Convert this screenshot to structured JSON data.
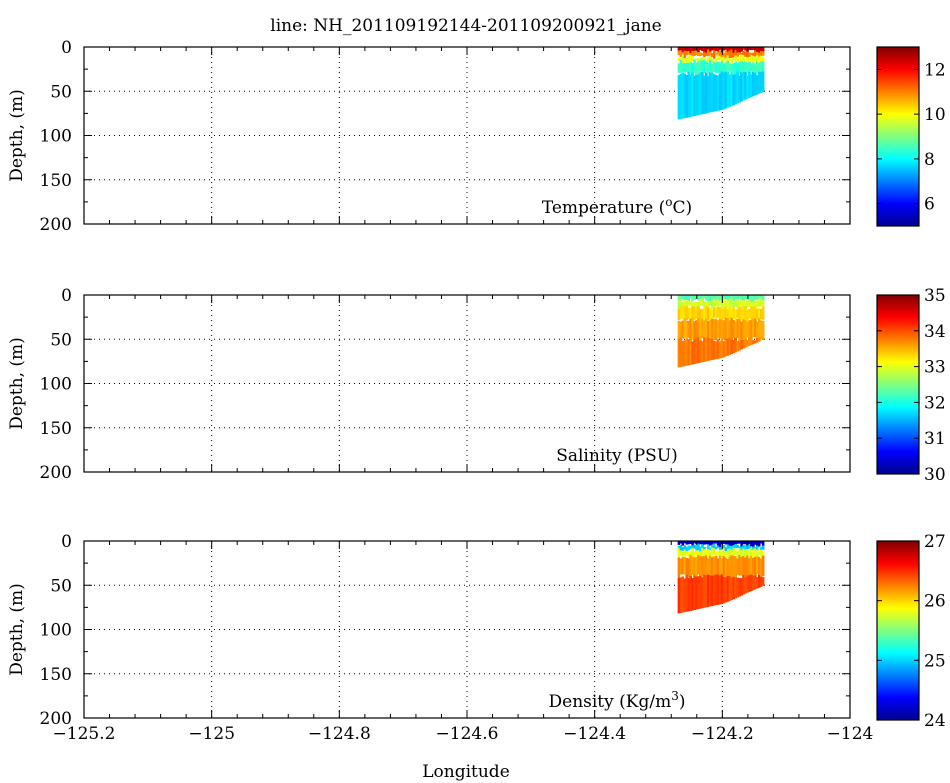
{
  "figure_title": "line: NH_201109192144-201109200921_jane",
  "xlabel": "Longitude",
  "chart_data": [
    {
      "type": "scatter",
      "title": "Temperature (oC)",
      "title_main": "Temperature (",
      "title_sup": "o",
      "title_end": "C)",
      "ylabel": "Depth, (m)",
      "xlim": [
        -125.2,
        -124.0
      ],
      "ylim": [
        200,
        0
      ],
      "xticks": [
        "-125.2",
        "-125",
        "-124.8",
        "-124.6",
        "-124.4",
        "-124.2",
        "-124"
      ],
      "yticks": [
        "0",
        "50",
        "100",
        "150",
        "200"
      ],
      "grid": true,
      "colorbar": {
        "min": 5,
        "max": 13,
        "ticks": [
          "6",
          "8",
          "10",
          "12"
        ],
        "colormap": "jet"
      },
      "section": {
        "lon_min": -124.27,
        "lon_max": -124.135,
        "bottom_profile": [
          [
            -124.27,
            82
          ],
          [
            -124.25,
            79
          ],
          [
            -124.22,
            74
          ],
          [
            -124.2,
            71
          ],
          [
            -124.18,
            65
          ],
          [
            -124.16,
            58
          ],
          [
            -124.14,
            52
          ],
          [
            -124.135,
            50
          ]
        ],
        "layers": [
          {
            "depth_from": 0,
            "depth_to": 5,
            "value": 12.5
          },
          {
            "depth_from": 5,
            "depth_to": 11,
            "value": 11.0
          },
          {
            "depth_from": 11,
            "depth_to": 17,
            "value": 9.8
          },
          {
            "depth_from": 17,
            "depth_to": 30,
            "value": 8.4
          },
          {
            "depth_from": 30,
            "depth_to": 90,
            "value": 7.7
          }
        ]
      }
    },
    {
      "type": "scatter",
      "title": "Salinity (PSU)",
      "title_main": "Salinity (PSU)",
      "title_sup": "",
      "title_end": "",
      "ylabel": "Depth, (m)",
      "xlim": [
        -125.2,
        -124.0
      ],
      "ylim": [
        200,
        0
      ],
      "xticks": [
        "-125.2",
        "-125",
        "-124.8",
        "-124.6",
        "-124.4",
        "-124.2",
        "-124"
      ],
      "yticks": [
        "0",
        "50",
        "100",
        "150",
        "200"
      ],
      "grid": true,
      "colorbar": {
        "min": 30,
        "max": 35,
        "ticks": [
          "30",
          "31",
          "32",
          "33",
          "34",
          "35"
        ],
        "colormap": "jet"
      },
      "section": {
        "lon_min": -124.27,
        "lon_max": -124.135,
        "bottom_profile": [
          [
            -124.27,
            82
          ],
          [
            -124.25,
            79
          ],
          [
            -124.22,
            74
          ],
          [
            -124.2,
            71
          ],
          [
            -124.18,
            65
          ],
          [
            -124.16,
            58
          ],
          [
            -124.14,
            52
          ],
          [
            -124.135,
            50
          ]
        ],
        "layers": [
          {
            "depth_from": 0,
            "depth_to": 6,
            "value": 32.3
          },
          {
            "depth_from": 6,
            "depth_to": 14,
            "value": 32.9
          },
          {
            "depth_from": 14,
            "depth_to": 28,
            "value": 33.3
          },
          {
            "depth_from": 28,
            "depth_to": 50,
            "value": 33.6
          },
          {
            "depth_from": 50,
            "depth_to": 90,
            "value": 33.8
          }
        ]
      }
    },
    {
      "type": "scatter",
      "title": "Density (Kg/m3)",
      "title_main": "Density (Kg/m",
      "title_sup": "3",
      "title_end": ")",
      "ylabel": "Depth, (m)",
      "xlim": [
        -125.2,
        -124.0
      ],
      "ylim": [
        200,
        0
      ],
      "xticks": [
        "-125.2",
        "-125",
        "-124.8",
        "-124.6",
        "-124.4",
        "-124.2",
        "-124"
      ],
      "yticks": [
        "0",
        "50",
        "100",
        "150",
        "200"
      ],
      "grid": true,
      "colorbar": {
        "min": 24,
        "max": 27,
        "ticks": [
          "24",
          "25",
          "26",
          "27"
        ],
        "colormap": "jet"
      },
      "section": {
        "lon_min": -124.27,
        "lon_max": -124.135,
        "bottom_profile": [
          [
            -124.27,
            82
          ],
          [
            -124.25,
            79
          ],
          [
            -124.22,
            74
          ],
          [
            -124.2,
            71
          ],
          [
            -124.18,
            65
          ],
          [
            -124.16,
            58
          ],
          [
            -124.14,
            52
          ],
          [
            -124.135,
            50
          ]
        ],
        "layers": [
          {
            "depth_from": 0,
            "depth_to": 5,
            "value": 24.2
          },
          {
            "depth_from": 5,
            "depth_to": 10,
            "value": 25.0
          },
          {
            "depth_from": 10,
            "depth_to": 18,
            "value": 25.8
          },
          {
            "depth_from": 18,
            "depth_to": 40,
            "value": 26.2
          },
          {
            "depth_from": 40,
            "depth_to": 90,
            "value": 26.45
          }
        ]
      }
    }
  ]
}
